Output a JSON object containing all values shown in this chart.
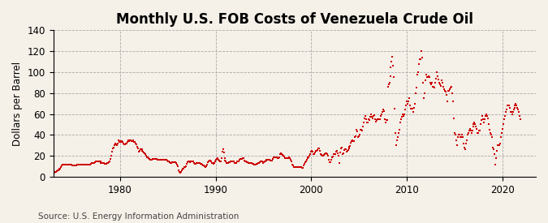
{
  "title": "Monthly U.S. FOB Costs of Venezuela Crude Oil",
  "ylabel": "Dollars per Barrel",
  "source": "Source: U.S. Energy Information Administration",
  "line_color": "#CC0000",
  "background_color": "#F5F0E8",
  "plot_bg_color": "#F5F0E8",
  "ylim": [
    0,
    140
  ],
  "yticks": [
    0,
    20,
    40,
    60,
    80,
    100,
    120,
    140
  ],
  "grid_color": "#999999",
  "title_fontsize": 12,
  "label_fontsize": 8.5,
  "tick_fontsize": 8.5,
  "source_fontsize": 7.5,
  "marker_size": 2.0,
  "x_tick_years": [
    1980,
    1990,
    2000,
    2010,
    2020
  ],
  "start_year": 1973,
  "start_month": 1,
  "xlim_start": 1973.0,
  "xlim_end": 2023.5,
  "values": [
    4.0,
    4.2,
    4.5,
    5.0,
    5.5,
    6.0,
    6.5,
    7.0,
    7.5,
    8.0,
    9.0,
    10.5,
    11.5,
    11.5,
    11.5,
    11.5,
    11.5,
    11.5,
    11.5,
    11.5,
    11.5,
    11.5,
    11.5,
    11.5,
    11.0,
    11.0,
    11.0,
    11.2,
    11.2,
    11.2,
    11.5,
    11.5,
    11.5,
    11.5,
    11.5,
    11.5,
    12.0,
    12.0,
    12.0,
    12.0,
    12.0,
    12.0,
    12.0,
    12.0,
    12.0,
    12.0,
    12.0,
    12.5,
    13.0,
    13.0,
    13.5,
    13.5,
    14.0,
    14.5,
    14.5,
    14.5,
    14.5,
    14.5,
    14.5,
    14.5,
    13.5,
    13.0,
    13.0,
    13.0,
    13.0,
    12.8,
    12.8,
    12.8,
    13.0,
    13.0,
    14.0,
    15.0,
    17.0,
    20.0,
    24.0,
    27.0,
    28.0,
    30.0,
    32.0,
    31.0,
    30.0,
    32.0,
    35.0,
    33.0,
    34.0,
    33.0,
    34.0,
    33.0,
    31.5,
    31.0,
    31.0,
    31.5,
    32.0,
    33.0,
    34.5,
    34.0,
    35.0,
    34.5,
    34.0,
    34.0,
    34.5,
    33.5,
    33.0,
    31.5,
    31.0,
    29.0,
    27.0,
    24.0,
    25.0,
    26.0,
    26.5,
    26.0,
    25.0,
    24.0,
    23.0,
    22.5,
    21.5,
    20.0,
    19.0,
    18.5,
    18.0,
    17.0,
    16.0,
    16.0,
    16.5,
    17.0,
    17.0,
    17.0,
    17.0,
    17.0,
    17.0,
    16.5,
    16.5,
    16.5,
    16.5,
    16.5,
    16.0,
    16.0,
    16.0,
    16.0,
    16.5,
    16.5,
    16.0,
    15.5,
    15.0,
    14.5,
    14.0,
    13.5,
    13.5,
    14.0,
    14.0,
    14.0,
    14.0,
    14.0,
    13.5,
    12.0,
    10.0,
    6.0,
    4.5,
    4.0,
    5.0,
    6.0,
    7.5,
    7.5,
    8.0,
    9.0,
    9.5,
    10.0,
    12.5,
    14.0,
    15.0,
    14.5,
    14.0,
    14.5,
    14.5,
    14.5,
    14.5,
    13.5,
    12.5,
    12.5,
    13.0,
    13.0,
    13.5,
    13.5,
    13.0,
    12.5,
    12.5,
    11.5,
    11.0,
    10.5,
    10.0,
    9.5,
    10.0,
    12.0,
    14.0,
    15.0,
    15.5,
    15.5,
    14.5,
    13.5,
    13.0,
    12.5,
    13.0,
    15.0,
    16.5,
    17.0,
    18.0,
    16.5,
    15.5,
    14.5,
    14.5,
    17.5,
    24.0,
    26.0,
    23.0,
    18.0,
    15.5,
    14.5,
    13.5,
    13.5,
    13.5,
    14.0,
    14.0,
    14.5,
    14.5,
    15.0,
    15.0,
    14.5,
    13.5,
    13.5,
    13.5,
    14.5,
    15.0,
    15.0,
    16.0,
    17.0,
    17.0,
    17.0,
    17.5,
    17.5,
    15.5,
    15.0,
    14.5,
    14.0,
    14.0,
    13.5,
    13.5,
    13.5,
    13.5,
    13.0,
    12.5,
    12.5,
    11.5,
    11.5,
    12.0,
    12.5,
    12.5,
    13.0,
    13.5,
    14.0,
    14.5,
    14.5,
    14.5,
    13.5,
    14.0,
    14.5,
    15.0,
    15.5,
    16.0,
    16.5,
    16.5,
    16.5,
    16.0,
    15.5,
    15.5,
    15.5,
    17.0,
    18.5,
    19.0,
    18.5,
    18.5,
    18.5,
    18.0,
    18.0,
    19.0,
    22.0,
    22.5,
    22.0,
    21.0,
    20.5,
    19.5,
    18.0,
    17.5,
    17.5,
    17.5,
    18.0,
    18.5,
    18.0,
    16.5,
    14.5,
    12.0,
    10.5,
    9.0,
    9.0,
    9.5,
    9.5,
    9.5,
    9.5,
    9.5,
    9.5,
    9.5,
    9.0,
    8.5,
    8.5,
    10.5,
    12.5,
    14.0,
    14.5,
    16.5,
    18.0,
    19.0,
    19.0,
    20.0,
    21.5,
    24.0,
    25.0,
    24.0,
    22.0,
    21.5,
    23.0,
    25.0,
    25.0,
    25.5,
    27.5,
    27.0,
    25.0,
    22.0,
    21.0,
    20.0,
    20.5,
    21.0,
    22.0,
    22.5,
    22.5,
    22.0,
    20.5,
    16.0,
    14.0,
    14.0,
    16.5,
    18.5,
    19.5,
    22.0,
    22.0,
    21.5,
    24.0,
    24.5,
    22.5,
    20.5,
    13.5,
    23.5,
    27.5,
    28.0,
    22.0,
    22.5,
    25.5,
    26.0,
    26.0,
    24.0,
    24.5,
    25.5,
    27.5,
    29.0,
    29.5,
    32.5,
    34.0,
    34.5,
    34.0,
    34.0,
    38.0,
    39.0,
    45.0,
    43.5,
    38.0,
    38.5,
    40.0,
    45.0,
    45.0,
    44.0,
    48.0,
    52.0,
    56.0,
    58.0,
    55.0,
    52.0,
    52.0,
    55.0,
    54.0,
    57.0,
    60.0,
    57.0,
    56.0,
    58.0,
    59.0,
    55.0,
    53.0,
    54.0,
    55.0,
    55.0,
    55.0,
    55.0,
    58.0,
    60.0,
    62.0,
    64.0,
    63.0,
    55.0,
    52.0,
    54.0,
    54.0,
    86.0,
    88.0,
    90.0,
    96.0,
    105.0,
    110.0,
    115.0,
    106.0,
    95.0,
    65.0,
    42.0,
    30.0,
    35.0,
    38.0,
    42.0,
    45.0,
    52.0,
    55.0,
    57.0,
    60.0,
    58.0,
    60.0,
    64.0,
    68.0,
    72.0,
    70.0,
    72.0,
    75.0,
    68.0,
    65.0,
    65.0,
    65.0,
    62.0,
    66.0,
    70.0,
    80.0,
    85.0,
    98.0,
    100.0,
    108.0,
    112.0,
    112.0,
    120.0,
    114.0,
    90.0,
    75.0,
    80.0,
    92.0,
    98.0,
    95.0,
    95.0,
    96.0,
    95.0,
    90.0,
    88.0,
    90.0,
    90.0,
    86.0,
    86.0,
    85.0,
    90.0,
    94.0,
    100.0,
    96.0,
    93.0,
    90.0,
    88.0,
    87.0,
    92.0,
    90.0,
    86.0,
    84.0,
    82.0,
    81.0,
    78.0,
    72.0,
    82.0,
    82.0,
    84.0,
    85.0,
    86.0,
    80.0,
    72.0,
    56.0,
    42.0,
    40.0,
    35.0,
    30.0,
    38.0,
    40.0,
    40.0,
    38.0,
    38.0,
    40.0,
    38.0,
    32.0,
    28.0,
    26.0,
    32.0,
    35.0,
    40.0,
    42.0,
    44.0,
    46.0,
    44.0,
    42.0,
    44.0,
    48.0,
    50.0,
    52.0,
    50.0,
    48.0,
    46.0,
    42.0,
    42.0,
    44.0,
    44.0,
    50.0,
    54.0,
    58.0,
    55.0,
    52.0,
    55.0,
    58.0,
    60.0,
    58.0,
    56.0,
    50.0,
    45.0,
    42.0,
    40.0,
    38.0,
    28.0,
    26.0,
    22.0,
    12.0,
    18.0,
    25.0,
    30.0,
    30.0,
    30.0,
    32.0,
    38.0,
    42.0,
    46.0,
    50.0,
    55.0,
    58.0,
    62.0,
    64.0,
    68.0,
    68.0,
    68.0,
    66.0,
    62.0,
    62.0,
    60.0,
    62.0,
    64.0,
    66.0,
    68.0,
    70.0,
    68.0,
    66.0,
    64.0,
    62.0,
    58.0,
    55.0
  ]
}
